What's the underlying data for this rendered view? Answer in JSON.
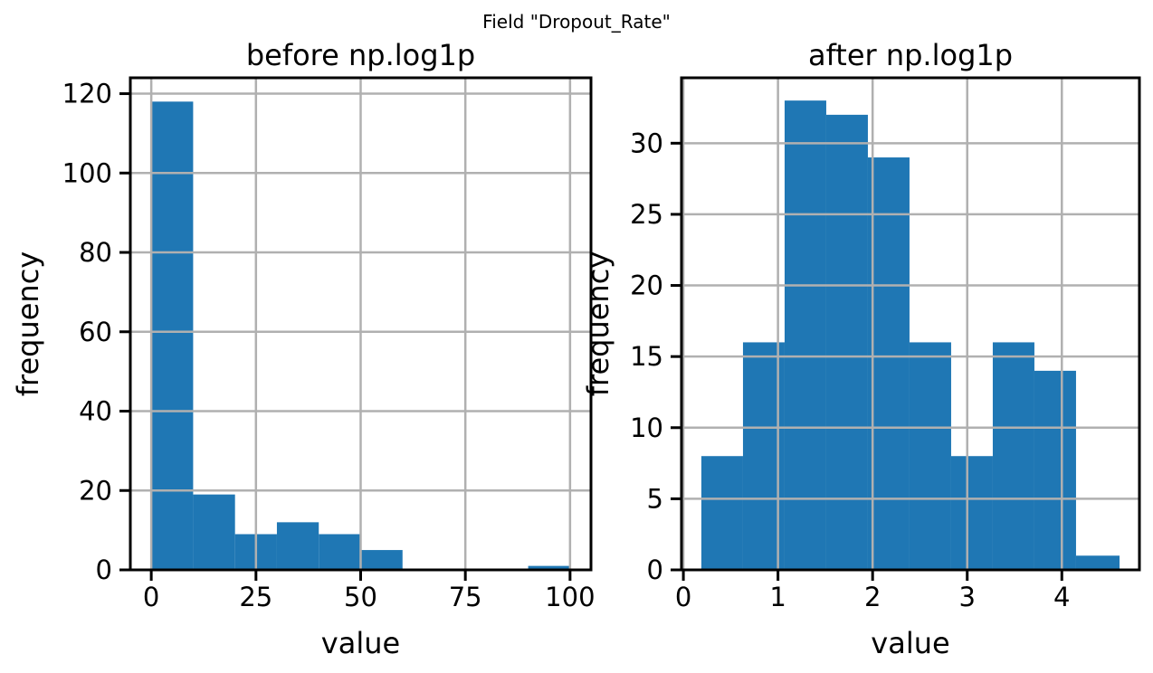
{
  "figure": {
    "suptitle": "Field \"Dropout_Rate\""
  },
  "colors": {
    "bar": "#1f77b4",
    "grid": "#b0b0b0",
    "axis": "#000000"
  },
  "chart_data": [
    {
      "type": "bar",
      "title": "before np.log1p",
      "xlabel": "value",
      "ylabel": "frequency",
      "grid": true,
      "xlim": [
        -5,
        105
      ],
      "ylim": [
        0,
        124
      ],
      "xticks": [
        0,
        25,
        50,
        75,
        100
      ],
      "yticks": [
        0,
        20,
        40,
        60,
        80,
        100,
        120
      ],
      "bins": [
        {
          "x0": 0,
          "x1": 10,
          "value": 118
        },
        {
          "x0": 10,
          "x1": 20,
          "value": 19
        },
        {
          "x0": 20,
          "x1": 30,
          "value": 9
        },
        {
          "x0": 30,
          "x1": 40,
          "value": 12
        },
        {
          "x0": 40,
          "x1": 50,
          "value": 9
        },
        {
          "x0": 50,
          "x1": 60,
          "value": 5
        },
        {
          "x0": 60,
          "x1": 70,
          "value": 0
        },
        {
          "x0": 70,
          "x1": 80,
          "value": 0
        },
        {
          "x0": 80,
          "x1": 90,
          "value": 0
        },
        {
          "x0": 90,
          "x1": 100,
          "value": 1
        }
      ]
    },
    {
      "type": "bar",
      "title": "after np.log1p",
      "xlabel": "value",
      "ylabel": "frequency",
      "grid": true,
      "xlim": [
        -0.02,
        4.82
      ],
      "ylim": [
        0,
        34.6
      ],
      "xticks": [
        0,
        1,
        2,
        3,
        4
      ],
      "yticks": [
        0,
        5,
        10,
        15,
        20,
        25,
        30
      ],
      "bins": [
        {
          "x0": 0.19,
          "x1": 0.63,
          "value": 8
        },
        {
          "x0": 0.63,
          "x1": 1.07,
          "value": 16
        },
        {
          "x0": 1.07,
          "x1": 1.51,
          "value": 33
        },
        {
          "x0": 1.51,
          "x1": 1.95,
          "value": 32
        },
        {
          "x0": 1.95,
          "x1": 2.39,
          "value": 29
        },
        {
          "x0": 2.39,
          "x1": 2.83,
          "value": 16
        },
        {
          "x0": 2.83,
          "x1": 3.27,
          "value": 8
        },
        {
          "x0": 3.27,
          "x1": 3.71,
          "value": 16
        },
        {
          "x0": 3.71,
          "x1": 4.15,
          "value": 14
        },
        {
          "x0": 4.15,
          "x1": 4.61,
          "value": 1
        }
      ]
    }
  ]
}
